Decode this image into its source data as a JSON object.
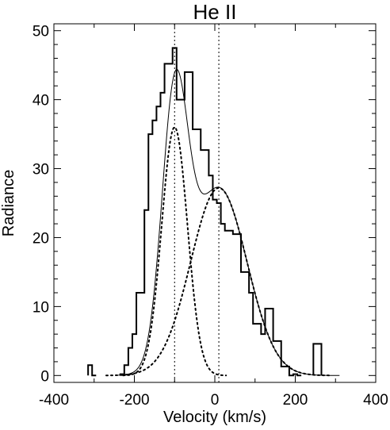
{
  "chart_data": {
    "type": "histogram-with-fits",
    "title": "He II",
    "xlabel": "Velocity (km/s)",
    "ylabel": "Radiance",
    "xlim": [
      -400,
      400
    ],
    "ylim": [
      -1,
      51
    ],
    "x_ticks": [
      -400,
      -200,
      0,
      200,
      400
    ],
    "y_ticks": [
      0,
      10,
      20,
      30,
      40,
      50
    ],
    "histogram": {
      "bin_width": 10,
      "bins": [
        {
          "x": -310,
          "y": 1.5
        },
        {
          "x": -300,
          "y": 0
        },
        {
          "x": -230,
          "y": 0.2
        },
        {
          "x": -220,
          "y": 1.5
        },
        {
          "x": -210,
          "y": 4
        },
        {
          "x": -200,
          "y": 6
        },
        {
          "x": -190,
          "y": 12
        },
        {
          "x": -180,
          "y": 12
        },
        {
          "x": -170,
          "y": 24
        },
        {
          "x": -160,
          "y": 35
        },
        {
          "x": -150,
          "y": 37
        },
        {
          "x": -140,
          "y": 39
        },
        {
          "x": -130,
          "y": 41
        },
        {
          "x": -120,
          "y": 45.2
        },
        {
          "x": -110,
          "y": 45.2
        },
        {
          "x": -100,
          "y": 47.5
        },
        {
          "x": -90,
          "y": 40
        },
        {
          "x": -80,
          "y": 40
        },
        {
          "x": -70,
          "y": 44
        },
        {
          "x": -60,
          "y": 44
        },
        {
          "x": -50,
          "y": 35.7
        },
        {
          "x": -40,
          "y": 35.7
        },
        {
          "x": -30,
          "y": 32.7
        },
        {
          "x": -20,
          "y": 32.7
        },
        {
          "x": -10,
          "y": 29
        },
        {
          "x": 0,
          "y": 25.5
        },
        {
          "x": 10,
          "y": 25
        },
        {
          "x": 20,
          "y": 22
        },
        {
          "x": 30,
          "y": 21
        },
        {
          "x": 40,
          "y": 21
        },
        {
          "x": 50,
          "y": 20.5
        },
        {
          "x": 60,
          "y": 20.5
        },
        {
          "x": 70,
          "y": 15
        },
        {
          "x": 80,
          "y": 15
        },
        {
          "x": 90,
          "y": 12
        },
        {
          "x": 100,
          "y": 7.5
        },
        {
          "x": 110,
          "y": 7.5
        },
        {
          "x": 120,
          "y": 6
        },
        {
          "x": 130,
          "y": 9.7
        },
        {
          "x": 140,
          "y": 9.7
        },
        {
          "x": 150,
          "y": 5
        },
        {
          "x": 160,
          "y": 5
        },
        {
          "x": 170,
          "y": 1.3
        },
        {
          "x": 180,
          "y": 1.3
        },
        {
          "x": 190,
          "y": 0
        },
        {
          "x": 200,
          "y": 0.2
        },
        {
          "x": 210,
          "y": 0
        },
        {
          "x": 250,
          "y": 4.6
        },
        {
          "x": 260,
          "y": 4.6
        }
      ]
    },
    "gaussian_components": [
      {
        "center": -100,
        "amplitude": 36,
        "sigma": 32
      },
      {
        "center": 10,
        "amplitude": 27.2,
        "sigma": 70
      }
    ],
    "vertical_reference_lines": [
      -100,
      10
    ]
  }
}
